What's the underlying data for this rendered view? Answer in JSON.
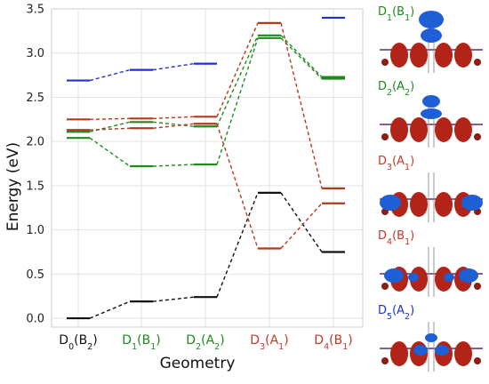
{
  "chart_data": {
    "type": "line",
    "xlabel": "Geometry",
    "ylabel": "Energy (eV)",
    "ylim": [
      -0.1,
      3.5
    ],
    "yticks": [
      "0.0",
      "0.5",
      "1.0",
      "1.5",
      "2.0",
      "2.5",
      "3.0",
      "3.5"
    ],
    "grid": true,
    "categories": [
      {
        "label": "D",
        "sub": "0",
        "sym": "(B",
        "symsub": "2",
        "close": ")",
        "color": "#111111"
      },
      {
        "label": "D",
        "sub": "1",
        "sym": "(B",
        "symsub": "1",
        "close": ")",
        "color": "#1e8a1e"
      },
      {
        "label": "D",
        "sub": "2",
        "sym": "(A",
        "symsub": "2",
        "close": ")",
        "color": "#1e8a1e"
      },
      {
        "label": "D",
        "sub": "3",
        "sym": "(A",
        "symsub": "1",
        "close": ")",
        "color": "#c0392b"
      },
      {
        "label": "D",
        "sub": "4",
        "sym": "(B",
        "symsub": "1",
        "close": ")",
        "color": "#c0392b"
      }
    ],
    "series": [
      {
        "color": "#111111",
        "values": [
          0.0,
          0.19,
          0.24,
          1.42,
          0.75
        ]
      },
      {
        "color": "#1e8a1e",
        "values": [
          2.04,
          1.72,
          1.74,
          3.17,
          2.71
        ]
      },
      {
        "color": "#1e8a1e",
        "values": [
          2.11,
          2.22,
          2.17,
          3.2,
          2.73
        ]
      },
      {
        "color": "#b33a1d",
        "values": [
          2.13,
          2.15,
          2.2,
          0.79,
          1.3
        ]
      },
      {
        "color": "#b33a1d",
        "values": [
          2.25,
          2.26,
          2.28,
          3.34,
          1.47
        ]
      },
      {
        "color": "#1f2fd0",
        "values": [
          2.69,
          2.81,
          2.88,
          null,
          3.4
        ]
      }
    ]
  },
  "state_panels": [
    {
      "label": "D",
      "sub": "1",
      "sym": "(B",
      "symsub": "1",
      "close": ")",
      "color": "#1e8a1e",
      "orbital": "vertical"
    },
    {
      "label": "D",
      "sub": "2",
      "sym": "(A",
      "symsub": "2",
      "close": ")",
      "color": "#1e8a1e",
      "orbital": "vertical-small"
    },
    {
      "label": "D",
      "sub": "3",
      "sym": "(A",
      "symsub": "1",
      "close": ")",
      "color": "#c0392b",
      "orbital": "horizontal"
    },
    {
      "label": "D",
      "sub": "4",
      "sym": "(B",
      "symsub": "1",
      "close": ")",
      "color": "#c0392b",
      "orbital": "horizontal-lobes"
    },
    {
      "label": "D",
      "sub": "5",
      "sym": "(A",
      "symsub": "2",
      "close": ")",
      "color": "#1f2fd0",
      "orbital": "center"
    }
  ]
}
